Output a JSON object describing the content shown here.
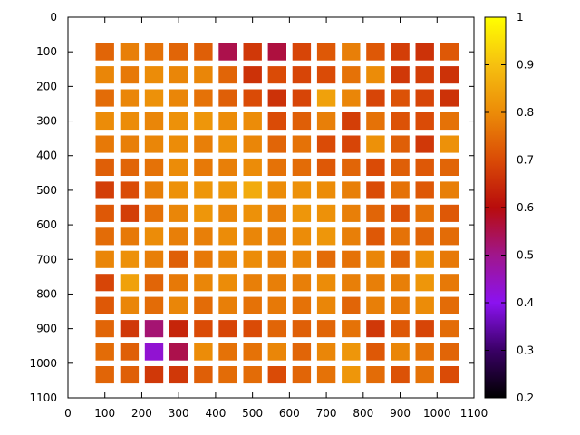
{
  "chart_data": {
    "type": "heatmap",
    "title": "",
    "xlabel": "",
    "ylabel": "",
    "xlim": [
      0,
      1100
    ],
    "ylim": [
      1100,
      0
    ],
    "xticks": [
      0,
      100,
      200,
      300,
      400,
      500,
      600,
      700,
      800,
      900,
      1000,
      1100
    ],
    "yticks": [
      0,
      100,
      200,
      300,
      400,
      500,
      600,
      700,
      800,
      900,
      1000,
      1100
    ],
    "cell_size": 50,
    "grid_x": [
      100,
      166.7,
      233.3,
      300,
      366.7,
      433.3,
      500,
      566.7,
      633.3,
      700,
      766.7,
      833.3,
      900,
      966.7,
      1033.3
    ],
    "grid_y": [
      100,
      166.7,
      233.3,
      300,
      366.7,
      433.3,
      500,
      566.7,
      633.3,
      700,
      766.7,
      833.3,
      900,
      966.7,
      1033.3
    ],
    "colorbar": {
      "range": [
        0.2,
        1
      ],
      "ticks": [
        0.2,
        0.3,
        0.4,
        0.5,
        0.6,
        0.7,
        0.8,
        0.9,
        1
      ],
      "palette": "black-purple-red-orange-yellow"
    },
    "values": [
      [
        0.74,
        0.78,
        0.76,
        0.74,
        0.73,
        0.55,
        0.67,
        0.56,
        0.69,
        0.72,
        0.78,
        0.72,
        0.68,
        0.66,
        0.72
      ],
      [
        0.79,
        0.77,
        0.8,
        0.79,
        0.79,
        0.74,
        0.66,
        0.7,
        0.69,
        0.7,
        0.76,
        0.8,
        0.67,
        0.68,
        0.66
      ],
      [
        0.75,
        0.79,
        0.81,
        0.79,
        0.76,
        0.73,
        0.7,
        0.66,
        0.69,
        0.84,
        0.79,
        0.69,
        0.71,
        0.69,
        0.66
      ],
      [
        0.8,
        0.8,
        0.79,
        0.81,
        0.82,
        0.8,
        0.8,
        0.7,
        0.73,
        0.78,
        0.68,
        0.76,
        0.71,
        0.7,
        0.76
      ],
      [
        0.77,
        0.78,
        0.79,
        0.8,
        0.78,
        0.81,
        0.79,
        0.74,
        0.76,
        0.7,
        0.69,
        0.81,
        0.73,
        0.67,
        0.81
      ],
      [
        0.73,
        0.74,
        0.76,
        0.8,
        0.77,
        0.78,
        0.8,
        0.76,
        0.75,
        0.72,
        0.74,
        0.7,
        0.73,
        0.72,
        0.74
      ],
      [
        0.68,
        0.7,
        0.78,
        0.81,
        0.82,
        0.82,
        0.86,
        0.8,
        0.81,
        0.8,
        0.78,
        0.7,
        0.76,
        0.72,
        0.78
      ],
      [
        0.72,
        0.68,
        0.76,
        0.79,
        0.82,
        0.79,
        0.81,
        0.78,
        0.82,
        0.81,
        0.78,
        0.74,
        0.71,
        0.76,
        0.72
      ],
      [
        0.75,
        0.77,
        0.8,
        0.78,
        0.78,
        0.8,
        0.79,
        0.78,
        0.8,
        0.82,
        0.78,
        0.72,
        0.76,
        0.74,
        0.75
      ],
      [
        0.79,
        0.81,
        0.78,
        0.73,
        0.77,
        0.79,
        0.8,
        0.78,
        0.79,
        0.75,
        0.76,
        0.79,
        0.74,
        0.81,
        0.77
      ],
      [
        0.69,
        0.84,
        0.74,
        0.77,
        0.79,
        0.8,
        0.78,
        0.78,
        0.78,
        0.8,
        0.78,
        0.78,
        0.78,
        0.82,
        0.77
      ],
      [
        0.72,
        0.79,
        0.75,
        0.79,
        0.75,
        0.78,
        0.76,
        0.77,
        0.76,
        0.79,
        0.74,
        0.78,
        0.77,
        0.8,
        0.75
      ],
      [
        0.74,
        0.67,
        0.52,
        0.64,
        0.7,
        0.69,
        0.7,
        0.74,
        0.73,
        0.74,
        0.76,
        0.67,
        0.72,
        0.69,
        0.75
      ],
      [
        0.75,
        0.73,
        0.43,
        0.55,
        0.8,
        0.76,
        0.76,
        0.79,
        0.74,
        0.79,
        0.82,
        0.72,
        0.79,
        0.76,
        0.74
      ],
      [
        0.74,
        0.73,
        0.67,
        0.67,
        0.73,
        0.75,
        0.75,
        0.7,
        0.74,
        0.76,
        0.82,
        0.75,
        0.71,
        0.76,
        0.7
      ]
    ]
  }
}
